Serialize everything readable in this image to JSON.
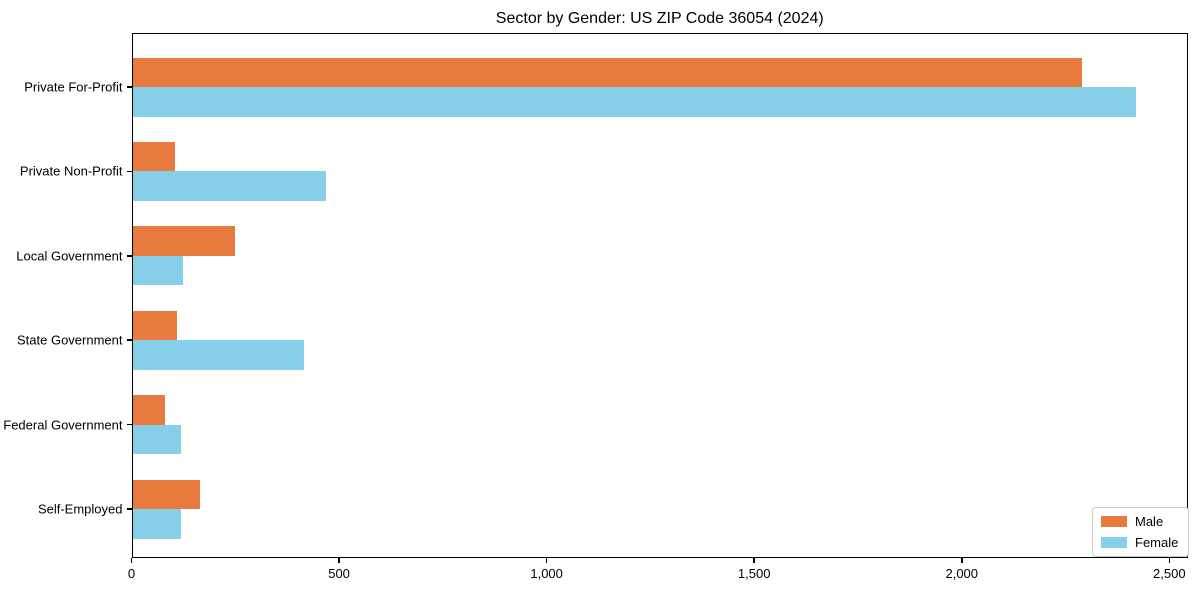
{
  "chart_data": {
    "type": "bar",
    "orientation": "horizontal",
    "title": "Sector by Gender: US ZIP Code 36054 (2024)",
    "categories": [
      "Private For-Profit",
      "Private Non-Profit",
      "Local Government",
      "State Government",
      "Federal Government",
      "Self-Employed"
    ],
    "series": [
      {
        "name": "Male",
        "color": "#E97A3D",
        "values": [
          2290,
          105,
          250,
          110,
          80,
          165
        ]
      },
      {
        "name": "Female",
        "color": "#87CEE9",
        "values": [
          2420,
          468,
          123,
          415,
          119,
          120
        ]
      }
    ],
    "xlabel": "",
    "ylabel": "",
    "xlim": [
      0,
      2545
    ],
    "x_ticks": [
      0,
      500,
      1000,
      1500,
      2000,
      2500
    ],
    "x_tick_labels": [
      "0",
      "500",
      "1,000",
      "1,500",
      "2,000",
      "2,500"
    ],
    "grid": false,
    "legend_position": "lower right",
    "colors": {
      "male": "#E97A3D",
      "female": "#87CEE9",
      "axis": "#000000",
      "legend_border": "#c9c9c9",
      "background": "#ffffff"
    }
  }
}
